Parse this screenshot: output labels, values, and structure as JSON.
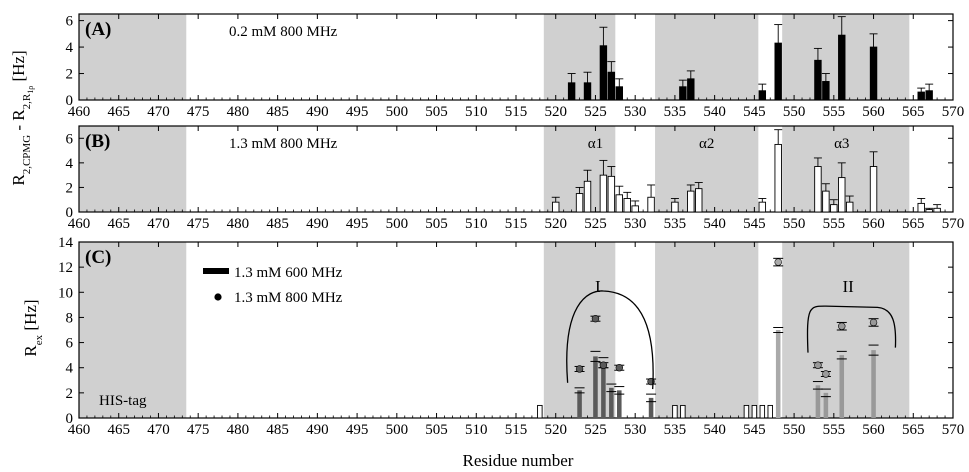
{
  "chart_data": [
    {
      "panel": "A",
      "panel_label": "(A)",
      "type": "bar",
      "annotation": "0.2 mM 800 MHz",
      "xlim": [
        460,
        570
      ],
      "ylim": [
        0,
        6.5
      ],
      "yticks": [
        0,
        2,
        4,
        6
      ],
      "xticks": [
        460,
        465,
        470,
        475,
        480,
        485,
        490,
        495,
        500,
        505,
        510,
        515,
        520,
        525,
        530,
        535,
        540,
        545,
        550,
        555,
        560,
        565,
        570
      ],
      "shaded_regions": [
        [
          460,
          473.5
        ],
        [
          518.5,
          527.5
        ],
        [
          532.5,
          545.5
        ],
        [
          548.5,
          564.5
        ]
      ],
      "bar_style": "filled black",
      "series": [
        {
          "x": [
            522,
            524,
            526,
            527,
            528,
            536,
            537,
            546,
            548,
            553,
            554,
            556,
            560,
            566,
            567
          ],
          "values": [
            1.3,
            1.3,
            4.1,
            2.1,
            1.0,
            1.0,
            1.6,
            0.7,
            4.3,
            3.0,
            1.4,
            4.9,
            4.0,
            0.6,
            0.7
          ],
          "errors": [
            0.7,
            0.8,
            1.4,
            0.8,
            0.6,
            0.5,
            0.6,
            0.5,
            1.4,
            0.9,
            0.6,
            1.4,
            1.0,
            0.3,
            0.5
          ]
        }
      ]
    },
    {
      "panel": "B",
      "panel_label": "(B)",
      "type": "bar",
      "annotation": "1.3 mM 800 MHz",
      "region_labels": [
        {
          "text": "α1",
          "x": 525
        },
        {
          "text": "α2",
          "x": 539
        },
        {
          "text": "α3",
          "x": 556
        }
      ],
      "xlim": [
        460,
        570
      ],
      "ylim": [
        0,
        7
      ],
      "yticks": [
        0,
        2,
        4,
        6
      ],
      "xticks": [
        460,
        465,
        470,
        475,
        480,
        485,
        490,
        495,
        500,
        505,
        510,
        515,
        520,
        525,
        530,
        535,
        540,
        545,
        550,
        555,
        560,
        565,
        570
      ],
      "shaded_regions": [
        [
          460,
          473.5
        ],
        [
          518.5,
          527.5
        ],
        [
          532.5,
          545.5
        ],
        [
          548.5,
          564.5
        ]
      ],
      "bar_style": "open white",
      "series": [
        {
          "x": [
            520,
            523,
            524,
            526,
            527,
            528,
            529,
            530,
            532,
            535,
            537,
            538,
            546,
            548,
            553,
            554,
            555,
            556,
            557,
            560,
            566,
            567,
            568
          ],
          "values": [
            0.8,
            1.5,
            2.5,
            3.0,
            2.9,
            1.4,
            1.1,
            0.5,
            1.2,
            0.8,
            1.7,
            1.9,
            0.8,
            5.5,
            3.7,
            1.7,
            0.6,
            2.8,
            0.8,
            3.7,
            0.7,
            0.2,
            0.3
          ],
          "errors": [
            0.4,
            0.5,
            0.9,
            1.2,
            0.8,
            0.7,
            0.5,
            0.4,
            1.0,
            0.3,
            0.5,
            0.5,
            0.3,
            1.2,
            0.7,
            0.6,
            0.4,
            1.2,
            0.5,
            1.2,
            0.4,
            0.1,
            0.3
          ]
        }
      ]
    },
    {
      "panel": "C",
      "panel_label": "(C)",
      "type": "bar",
      "xlim": [
        460,
        570
      ],
      "ylim": [
        0,
        14
      ],
      "yticks": [
        0,
        2,
        4,
        6,
        8,
        10,
        12,
        14
      ],
      "xticks": [
        460,
        465,
        470,
        475,
        480,
        485,
        490,
        495,
        500,
        505,
        510,
        515,
        520,
        525,
        530,
        535,
        540,
        545,
        550,
        555,
        560,
        565,
        570
      ],
      "shaded_regions": [
        [
          460,
          473.5
        ],
        [
          518.5,
          527.5
        ],
        [
          532.5,
          545.5
        ],
        [
          548.5,
          564.5
        ]
      ],
      "his_tag_label": "HIS-tag",
      "legend": [
        {
          "label": "1.3 mM 600 MHz",
          "marker": "bar"
        },
        {
          "label": "1.3 mM 800 MHz",
          "marker": "dot"
        }
      ],
      "cluster_labels": [
        {
          "text": "I",
          "x": 525.3
        },
        {
          "text": "II",
          "x": 556.8
        }
      ],
      "series": [
        {
          "label": "1.3 mM 600 MHz",
          "x": [
            518,
            523,
            525,
            526,
            527,
            528,
            532,
            535,
            536,
            544,
            545,
            546,
            547,
            548,
            553,
            554,
            556,
            560
          ],
          "values": [
            1.0,
            2.2,
            4.9,
            4.4,
            2.4,
            2.2,
            1.6,
            1.0,
            1.0,
            1.0,
            1.0,
            1.0,
            1.0,
            7.0,
            2.6,
            2.0,
            5.0,
            5.4
          ],
          "errors": [
            0,
            0.2,
            0.4,
            0.4,
            0.3,
            0.3,
            0.3,
            0,
            0,
            0,
            0,
            0,
            0,
            0.2,
            0.3,
            0.3,
            0.3,
            0.4
          ],
          "colors": [
            "#ffffff",
            "#5a5a5a",
            "#5a5a5a",
            "#5a5a5a",
            "#5a5a5a",
            "#5a5a5a",
            "#5a5a5a",
            "#ffffff",
            "#ffffff",
            "#ffffff",
            "#ffffff",
            "#ffffff",
            "#ffffff",
            "#aaaaaa",
            "#999999",
            "#999999",
            "#999999",
            "#999999"
          ]
        },
        {
          "label": "1.3 mM 800 MHz",
          "x": [
            523,
            525,
            526,
            528,
            532,
            548,
            553,
            554,
            556,
            560
          ],
          "values": [
            3.9,
            7.9,
            4.2,
            4.0,
            2.9,
            12.4,
            4.2,
            3.5,
            7.3,
            7.6
          ],
          "errors": [
            0.2,
            0.2,
            0.2,
            0.2,
            0.2,
            0.3,
            0.2,
            0.2,
            0.3,
            0.3
          ],
          "colors": [
            "#5a5a5a",
            "#5a5a5a",
            "#5a5a5a",
            "#5a5a5a",
            "#5a5a5a",
            "#aaaaaa",
            "#999999",
            "#999999",
            "#999999",
            "#999999"
          ]
        }
      ]
    }
  ],
  "axes": {
    "ylabel_top": "R2,CPMG - R2,R1ρ [Hz]",
    "ylabel_top_parts": {
      "r1": "R",
      "s1": "2,CPMG",
      "mid": " - R",
      "s2": "2,R",
      "s3": "1ρ",
      "unit": " [Hz]"
    },
    "ylabel_bottom": "Rex [Hz]",
    "ylabel_bottom_parts": {
      "r": "R",
      "sub": "ex",
      "unit": " [Hz]"
    },
    "xlabel": "Residue number"
  }
}
